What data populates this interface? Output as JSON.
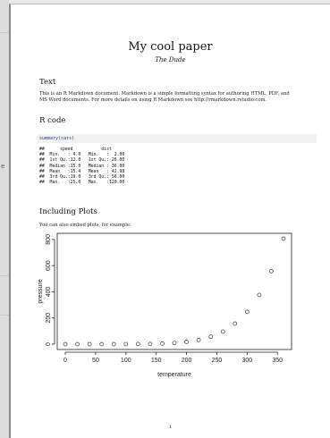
{
  "document": {
    "title": "My cool paper",
    "author": "The Dude",
    "page_number": "1"
  },
  "sections": {
    "text": {
      "heading": "Text",
      "body_line1": "This is an R Markdown document. Markdown is a simple formatting syntax for authoring HTML, PDF, and",
      "body_line2": "MS Word documents. For more details on using R Markdown see http://rmarkdown.rstudio.com."
    },
    "rcode": {
      "heading": "R code",
      "call": "summary(cars)",
      "output_lines": [
        "##      speed           dist    ",
        "##  Min.   : 4.0   Min.   :  2.00  ",
        "##  1st Qu.:12.0   1st Qu.: 26.00  ",
        "##  Median :15.0   Median : 36.00  ",
        "##  Mean   :15.4   Mean   : 42.98  ",
        "##  3rd Qu.:19.0   3rd Qu.: 56.00  ",
        "##  Max.   :25.0   Max.   :120.00  "
      ]
    },
    "plots": {
      "heading": "Including Plots",
      "intro": "You can also embed plots, for example:"
    }
  },
  "chart_data": {
    "type": "scatter",
    "title": "",
    "xlabel": "temperature",
    "ylabel": "pressure",
    "x": [
      0,
      20,
      40,
      60,
      80,
      100,
      120,
      140,
      160,
      180,
      200,
      220,
      240,
      260,
      280,
      300,
      320,
      340,
      360
    ],
    "y": [
      0.0002,
      0.0012,
      0.006,
      0.03,
      0.09,
      0.27,
      0.75,
      1.85,
      4.2,
      8.8,
      17.3,
      32.1,
      57,
      96,
      157,
      247,
      376,
      558,
      806
    ],
    "xlim": [
      0,
      360
    ],
    "ylim": [
      0,
      806
    ],
    "xticks": [
      "0",
      "50",
      "100",
      "150",
      "200",
      "250",
      "300",
      "350"
    ],
    "yticks": [
      "0",
      "200",
      "400",
      "600",
      "800"
    ],
    "marker": "open-circle",
    "grid": false,
    "colors": {
      "marker": "#333333",
      "axis": "#222222"
    }
  }
}
